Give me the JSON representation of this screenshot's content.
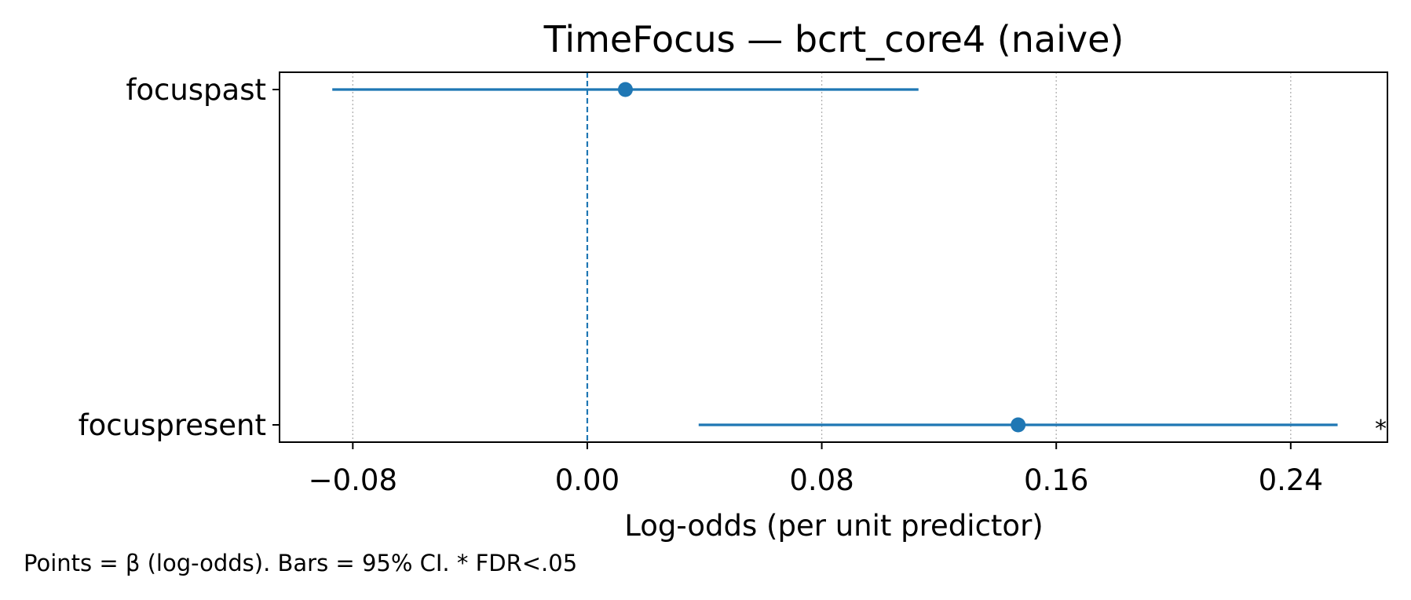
{
  "chart_data": {
    "type": "scatter",
    "title": "TimeFocus — bcrt_core4 (naive)",
    "xlabel": "Log-odds (per unit predictor)",
    "ylabel": "",
    "xlim": [
      -0.105,
      0.273
    ],
    "xticks": [
      -0.08,
      0.0,
      0.08,
      0.16,
      0.24
    ],
    "xtick_labels": [
      "−0.08",
      "0.00",
      "0.08",
      "0.16",
      "0.24"
    ],
    "reference_line": 0.0,
    "grid": "x-axis vertical dotted",
    "color": "#1f77b4",
    "categories": [
      "focuspast",
      "focuspresent"
    ],
    "series": [
      {
        "points": [
          {
            "label": "focuspast",
            "beta": 0.013,
            "ci_low": -0.087,
            "ci_high": 0.113,
            "significance": ""
          },
          {
            "label": "focuspresent",
            "beta": 0.147,
            "ci_low": 0.038,
            "ci_high": 0.256,
            "significance": "*"
          }
        ]
      }
    ],
    "caption": "Points = β (log-odds). Bars = 95% CI. * FDR<.05"
  }
}
